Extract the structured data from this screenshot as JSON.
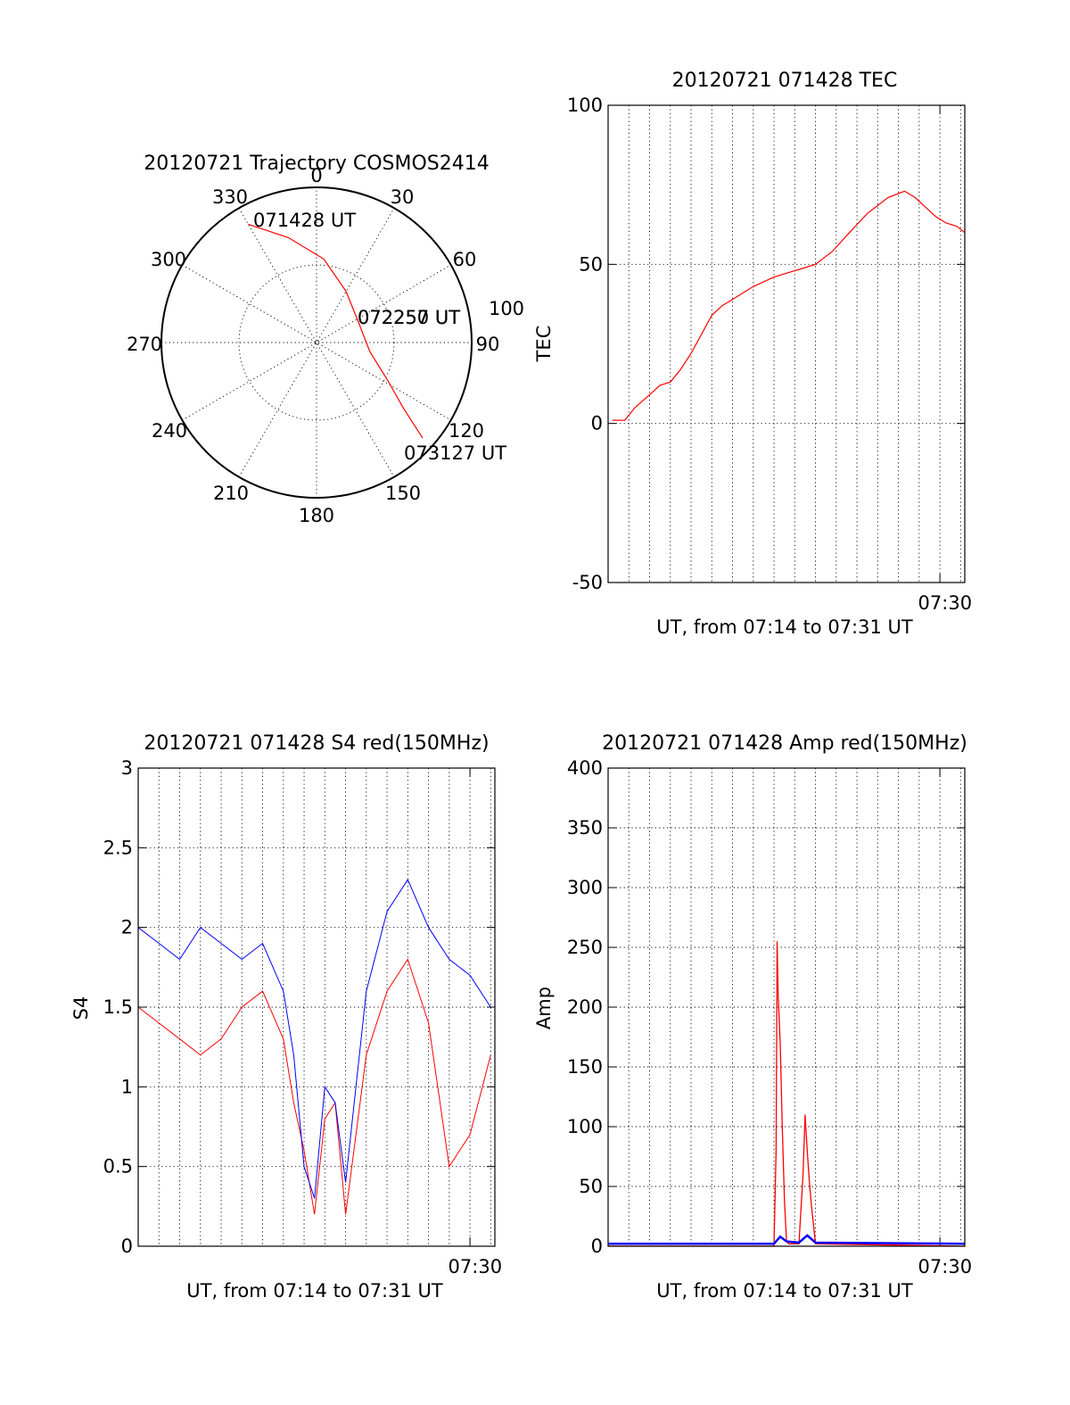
{
  "chart_data": [
    {
      "type": "polar",
      "title": "20120721 Trajectory COSMOS2414",
      "angle_labels": [
        "0",
        "30",
        "60",
        "90",
        "120",
        "150",
        "180",
        "210",
        "240",
        "270",
        "300",
        "330"
      ],
      "radius_label": "100",
      "annotations": [
        "071428 UT",
        "072250 UT",
        "072257 UT",
        "073127 UT"
      ],
      "series": [
        {
          "color": "#ff0000",
          "points": [
            {
              "az": 330,
              "r": 0.88
            },
            {
              "az": 345,
              "r": 0.7
            },
            {
              "az": 5,
              "r": 0.54
            },
            {
              "az": 30,
              "r": 0.38
            },
            {
              "az": 65,
              "r": 0.3
            },
            {
              "az": 100,
              "r": 0.35
            },
            {
              "az": 118,
              "r": 0.52
            },
            {
              "az": 127,
              "r": 0.7
            },
            {
              "az": 132,
              "r": 0.92
            }
          ]
        }
      ]
    },
    {
      "type": "line",
      "title": "20120721 071428 TEC",
      "xlabel": "UT, from 07:14 to 07:31 UT",
      "ylabel": "TEC",
      "ylim": [
        -50,
        100
      ],
      "yticks": [
        -50,
        0,
        50,
        100
      ],
      "xlim": [
        0,
        17.2
      ],
      "xtick_labels": [
        {
          "x": 16.0,
          "text": "07:30"
        }
      ],
      "grid": true,
      "series": [
        {
          "color": "#ff0000",
          "x": [
            0.2,
            0.8,
            1.3,
            2.0,
            2.5,
            3.0,
            3.5,
            4.0,
            4.5,
            5.0,
            5.5,
            6.0,
            6.5,
            7.0,
            8.0,
            9.0,
            10.0,
            10.8,
            11.5,
            12.5,
            13.5,
            14.3,
            14.8,
            15.3,
            15.8,
            16.3,
            16.8,
            17.2
          ],
          "y": [
            1,
            1,
            5,
            9,
            12,
            13,
            17,
            22,
            28,
            34,
            37,
            39,
            41,
            43,
            46,
            48,
            50,
            54,
            59,
            66,
            71,
            73,
            71,
            68,
            65,
            63,
            62,
            60
          ]
        }
      ]
    },
    {
      "type": "line",
      "title": "20120721 071428 S4 red(150MHz)",
      "xlabel": "UT, from 07:14 to 07:31 UT",
      "ylabel": "S4",
      "ylim": [
        0,
        3
      ],
      "yticks": [
        0,
        0.5,
        1,
        1.5,
        2,
        2.5,
        3
      ],
      "ytick_labels": [
        "0",
        "0.5",
        "1",
        "1.5",
        "2",
        "2.5",
        "3"
      ],
      "xlim": [
        0,
        17.2
      ],
      "xtick_labels": [
        {
          "x": 16.0,
          "text": "07:30"
        }
      ],
      "grid": true,
      "series": [
        {
          "color": "#ff0000",
          "x": [
            0,
            1,
            2,
            3,
            4,
            5,
            6,
            7,
            7.5,
            8,
            8.5,
            9,
            9.5,
            10,
            11,
            12,
            13,
            14,
            15,
            16,
            17
          ],
          "y": [
            1.5,
            1.4,
            1.3,
            1.2,
            1.3,
            1.5,
            1.6,
            1.3,
            0.9,
            0.6,
            0.2,
            0.8,
            0.9,
            0.2,
            1.2,
            1.6,
            1.8,
            1.4,
            0.5,
            0.7,
            1.2
          ]
        },
        {
          "color": "#0000ff",
          "x": [
            0,
            1,
            2,
            3,
            4,
            5,
            6,
            7,
            7.5,
            8,
            8.5,
            9,
            9.5,
            10,
            11,
            12,
            13,
            14,
            15,
            16,
            17
          ],
          "y": [
            2.0,
            1.9,
            1.8,
            2.0,
            1.9,
            1.8,
            1.9,
            1.6,
            1.2,
            0.5,
            0.3,
            1.0,
            0.9,
            0.4,
            1.6,
            2.1,
            2.3,
            2.0,
            1.8,
            1.7,
            1.5
          ]
        }
      ]
    },
    {
      "type": "line",
      "title": "20120721 071428 Amp red(150MHz)",
      "xlabel": "UT, from 07:14 to 07:31 UT",
      "ylabel": "Amp",
      "ylim": [
        0,
        400
      ],
      "yticks": [
        0,
        50,
        100,
        150,
        200,
        250,
        300,
        350,
        400
      ],
      "xlim": [
        0,
        17.2
      ],
      "xtick_labels": [
        {
          "x": 16.0,
          "text": "07:30"
        }
      ],
      "grid": true,
      "series": [
        {
          "color": "#ff0000",
          "x": [
            0,
            8.0,
            8.1,
            8.15,
            8.2,
            8.3,
            8.4,
            8.5,
            8.6,
            8.7,
            9.2,
            9.4,
            9.5,
            9.6,
            9.7,
            9.8,
            10.0,
            17.2
          ],
          "y": [
            0,
            0,
            80,
            255,
            210,
            170,
            100,
            40,
            5,
            2,
            2,
            60,
            110,
            80,
            55,
            35,
            2,
            0
          ]
        },
        {
          "color": "#0000ff",
          "x": [
            0,
            8.0,
            8.3,
            8.6,
            9.2,
            9.6,
            10.0,
            17.2
          ],
          "y": [
            2,
            2,
            8,
            4,
            3,
            9,
            3,
            2
          ]
        }
      ]
    }
  ]
}
